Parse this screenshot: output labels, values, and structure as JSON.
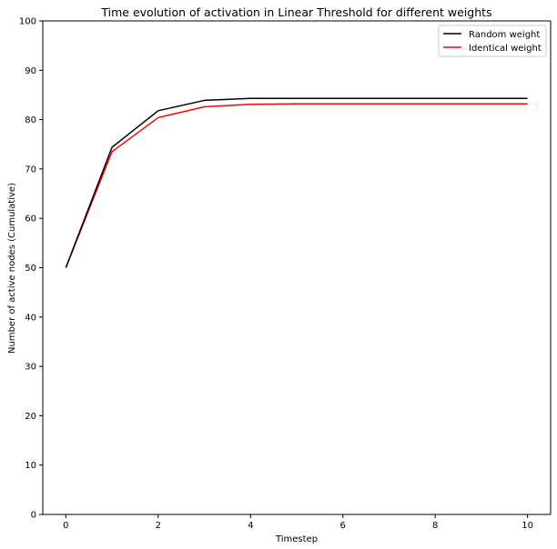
{
  "chart_data": {
    "type": "line",
    "title": "Time evolution of activation in Linear Threshold for different weights",
    "xlabel": "Timestep",
    "ylabel": "Number of active nodes (Cumulative)",
    "x": [
      0,
      1,
      2,
      3,
      4,
      5,
      6,
      7,
      8,
      9,
      10
    ],
    "xlim": [
      -0.5,
      10.5
    ],
    "ylim": [
      0,
      100
    ],
    "xticks": [
      0,
      2,
      4,
      6,
      8,
      10
    ],
    "yticks": [
      0,
      10,
      20,
      30,
      40,
      50,
      60,
      70,
      80,
      90,
      100
    ],
    "grid": false,
    "legend_position": "top-right",
    "series": [
      {
        "name": "Random weight",
        "color": "#000000",
        "values": [
          50,
          74.4,
          81.8,
          83.9,
          84.3,
          84.3,
          84.3,
          84.3,
          84.3,
          84.3,
          84.3
        ]
      },
      {
        "name": "Identical weight",
        "color": "#ff0000",
        "values": [
          50,
          73.5,
          80.4,
          82.6,
          83.1,
          83.2,
          83.2,
          83.2,
          83.2,
          83.2,
          83.2
        ]
      }
    ]
  }
}
